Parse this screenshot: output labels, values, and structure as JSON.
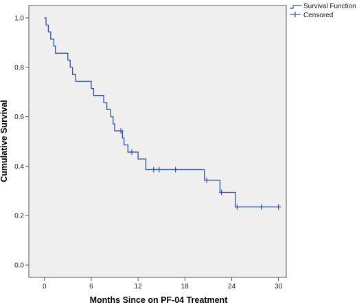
{
  "chart_data": {
    "type": "line",
    "title": "",
    "xlabel": "Months Since on PF-04 Treatment",
    "ylabel": "Cumulative Survival",
    "xlim": [
      -2,
      31
    ],
    "ylim": [
      -0.05,
      1.05
    ],
    "xticks": [
      0,
      6,
      12,
      18,
      24,
      30
    ],
    "yticks": [
      0.0,
      0.2,
      0.4,
      0.6,
      0.8,
      1.0
    ],
    "xtick_labels": [
      "0",
      "6",
      "12",
      "18",
      "24",
      "30"
    ],
    "ytick_labels": [
      "0.0",
      "0.2",
      "0.4",
      "0.6",
      "0.8",
      "1.0"
    ],
    "grid": false,
    "legend_position": "top-right, outside plot",
    "colors": {
      "line": "#2e4f9e",
      "plot_background": "#efefef",
      "axis": "#555555"
    },
    "series": [
      {
        "name": "Survival Function",
        "steps": [
          [
            0.0,
            1.0
          ],
          [
            0.2,
            0.971
          ],
          [
            0.5,
            0.943
          ],
          [
            0.8,
            0.914
          ],
          [
            1.2,
            0.886
          ],
          [
            1.4,
            0.857
          ],
          [
            3.0,
            0.829
          ],
          [
            3.3,
            0.8
          ],
          [
            3.6,
            0.771
          ],
          [
            4.0,
            0.743
          ],
          [
            6.0,
            0.714
          ],
          [
            6.3,
            0.686
          ],
          [
            7.6,
            0.657
          ],
          [
            8.0,
            0.629
          ],
          [
            8.5,
            0.6
          ],
          [
            8.8,
            0.571
          ],
          [
            9.0,
            0.543
          ],
          [
            10.0,
            0.514
          ],
          [
            10.2,
            0.486
          ],
          [
            10.7,
            0.457
          ],
          [
            12.0,
            0.429
          ],
          [
            13.0,
            0.386
          ],
          [
            20.5,
            0.343
          ],
          [
            22.5,
            0.294
          ],
          [
            24.5,
            0.235
          ]
        ],
        "end_x": 30.0
      },
      {
        "name": "Censored",
        "points": [
          [
            9.8,
            0.543
          ],
          [
            11.2,
            0.457
          ],
          [
            14.0,
            0.386
          ],
          [
            14.7,
            0.386
          ],
          [
            16.8,
            0.386
          ],
          [
            20.8,
            0.343
          ],
          [
            22.7,
            0.294
          ],
          [
            24.7,
            0.235
          ],
          [
            27.8,
            0.235
          ],
          [
            30.0,
            0.235
          ]
        ]
      }
    ]
  }
}
